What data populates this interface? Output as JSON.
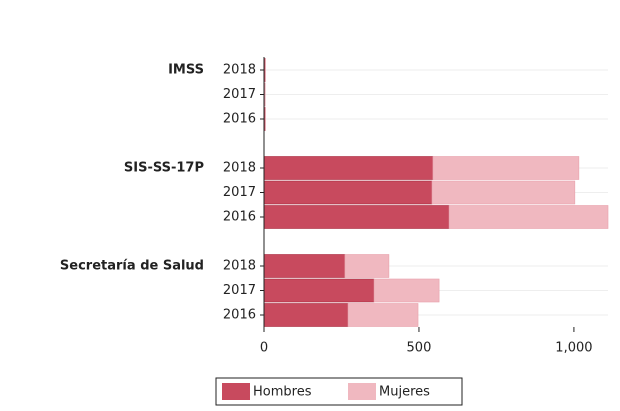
{
  "chart_data": {
    "type": "stacked-barh",
    "groups": [
      "IMSS",
      "SIS-SS-17P",
      "Secretaría de Salud"
    ],
    "categories": [
      "2018",
      "2017",
      "2016",
      "2018",
      "2017",
      "2016",
      "2018",
      "2017",
      "2016"
    ],
    "series": [
      {
        "name": "Hombres",
        "color": "#c84a5e",
        "values": [
          4,
          3,
          4,
          545,
          542,
          597,
          261,
          355,
          271
        ]
      },
      {
        "name": "Mujeres",
        "color": "#f0b8c0",
        "values": [
          1,
          1,
          1,
          471,
          461,
          513,
          142,
          210,
          226
        ]
      }
    ],
    "xlim": [
      0,
      1110
    ],
    "xticks": [
      0,
      500,
      {
        "value": 1000,
        "label": "1,000"
      }
    ],
    "grid": true,
    "legend": "bottom"
  }
}
